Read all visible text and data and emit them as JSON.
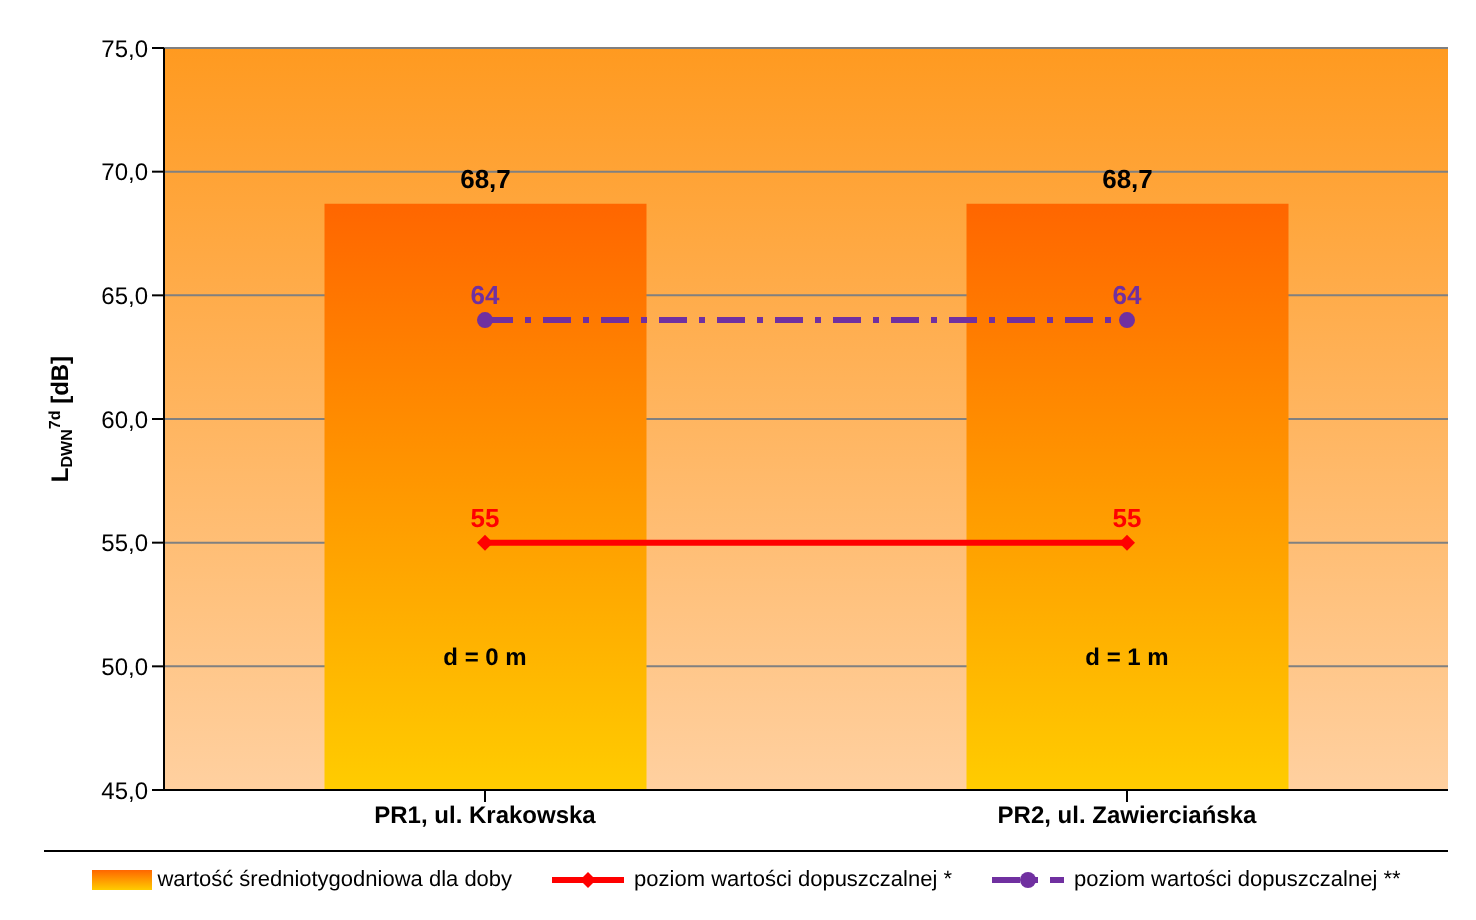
{
  "chart_data": {
    "type": "bar",
    "ylabel": "L$_{DWN}$$^{7d}$ [dB]",
    "categories": [
      "PR1, ul. Krakowska",
      "PR2, ul. Zawierciańska"
    ],
    "series": [
      {
        "name": "wartość średniotygodniowa dla doby",
        "color": "#ff6600",
        "values": [
          68.7,
          68.7
        ],
        "value_labels": [
          "68,7",
          "68,7"
        ]
      },
      {
        "name": "poziom wartości dopuszczalnej *",
        "type": "line",
        "color": "#ff0000",
        "values": [
          55,
          55
        ],
        "value_labels": [
          "55",
          "55"
        ],
        "marker": "diamond",
        "line_style": "solid"
      },
      {
        "name": "poziom wartości dopuszczalnej **",
        "type": "line",
        "color": "#7030a0",
        "values": [
          64,
          64
        ],
        "value_labels": [
          "64",
          "64"
        ],
        "marker": "circle",
        "line_style": "dashdot"
      }
    ],
    "ylim": [
      45,
      75
    ],
    "yticks": [
      {
        "value": 45,
        "label": "45,0"
      },
      {
        "value": 50,
        "label": "50,0"
      },
      {
        "value": 55,
        "label": "55,0"
      },
      {
        "value": 60,
        "label": "60,0"
      },
      {
        "value": 65,
        "label": "65,0"
      },
      {
        "value": 70,
        "label": "70,0"
      },
      {
        "value": 75,
        "label": "75,0"
      }
    ],
    "grid": "y",
    "legend": "bottom",
    "annotations": [
      "d = 0 m",
      "d = 1 m"
    ]
  }
}
